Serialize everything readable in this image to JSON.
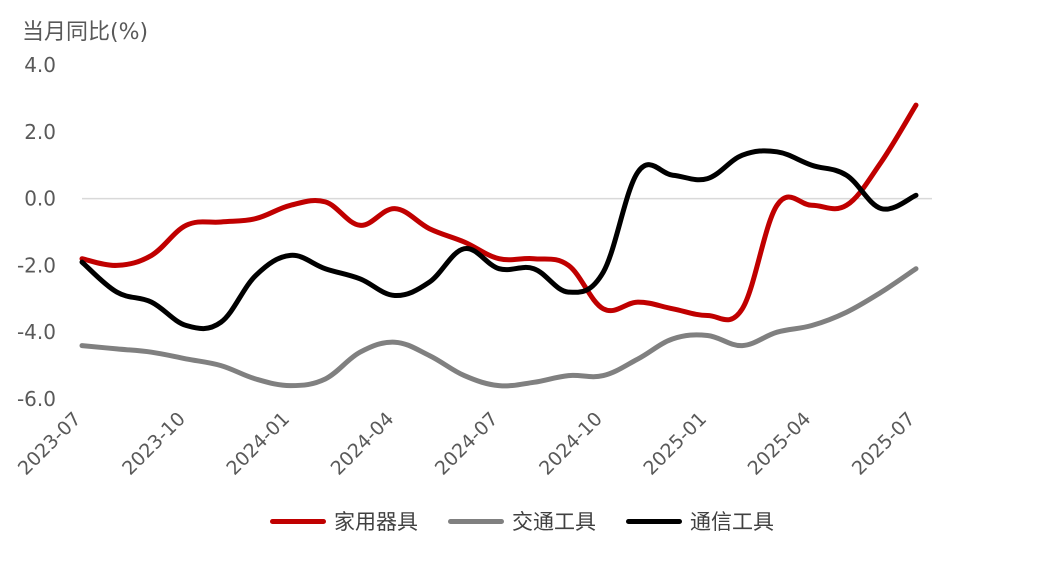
{
  "chart_data": {
    "type": "line",
    "ylabel": "当月同比(%)",
    "ylim": [
      -6,
      4
    ],
    "yticks": [
      "4.0",
      "2.0",
      "0.0",
      "-2.0",
      "-4.0",
      "-6.0"
    ],
    "ytick_values": [
      4,
      2,
      0,
      -2,
      -4,
      -6
    ],
    "x": [
      "2023-07",
      "2023-08",
      "2023-09",
      "2023-10",
      "2023-11",
      "2023-12",
      "2024-01",
      "2024-02",
      "2024-03",
      "2024-04",
      "2024-05",
      "2024-06",
      "2024-07",
      "2024-08",
      "2024-09",
      "2024-10",
      "2024-11",
      "2024-12",
      "2025-01",
      "2025-02",
      "2025-03",
      "2025-04",
      "2025-05",
      "2025-06",
      "2025-07"
    ],
    "xticks": [
      "2023-07",
      "2023-10",
      "2024-01",
      "2024-04",
      "2024-07",
      "2024-10",
      "2025-01",
      "2025-04",
      "2025-07"
    ],
    "grid": false,
    "legend_position": "bottom",
    "series": [
      {
        "name": "家用器具",
        "color": "#C00000",
        "values": [
          -1.8,
          -2.0,
          -1.7,
          -0.8,
          -0.7,
          -0.6,
          -0.2,
          -0.1,
          -0.8,
          -0.3,
          -0.9,
          -1.3,
          -1.8,
          -1.8,
          -2.0,
          -3.3,
          -3.1,
          -3.3,
          -3.5,
          -3.3,
          -0.2,
          -0.2,
          -0.2,
          1.1,
          2.8
        ]
      },
      {
        "name": "交通工具",
        "color": "#808080",
        "values": [
          -4.4,
          -4.5,
          -4.6,
          -4.8,
          -5.0,
          -5.4,
          -5.6,
          -5.4,
          -4.6,
          -4.3,
          -4.7,
          -5.3,
          -5.6,
          -5.5,
          -5.3,
          -5.3,
          -4.8,
          -4.2,
          -4.1,
          -4.4,
          -4.0,
          -3.8,
          -3.4,
          -2.8,
          -2.1
        ]
      },
      {
        "name": "通信工具",
        "color": "#000000",
        "values": [
          -1.9,
          -2.8,
          -3.1,
          -3.8,
          -3.7,
          -2.3,
          -1.7,
          -2.1,
          -2.4,
          -2.9,
          -2.5,
          -1.5,
          -2.1,
          -2.1,
          -2.8,
          -2.2,
          0.8,
          0.7,
          0.6,
          1.3,
          1.4,
          1.0,
          0.7,
          -0.3,
          0.1
        ]
      }
    ]
  }
}
